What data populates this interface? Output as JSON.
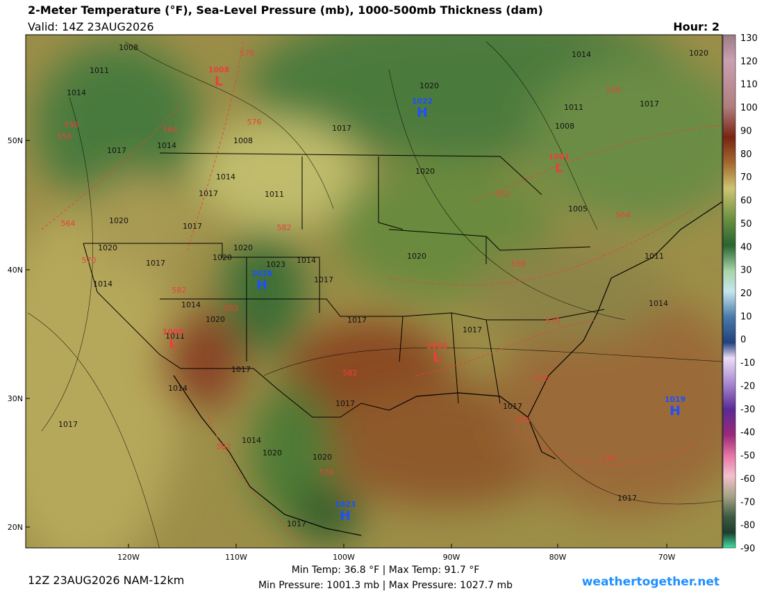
{
  "header": {
    "title": "2-Meter Temperature (°F), Sea-Level Pressure (mb), 1000-500mb Thickness (dam)",
    "valid": "Valid: 14Z 23AUG2026",
    "hour": "Hour: 2"
  },
  "colorbar": {
    "ticks": [
      "130",
      "120",
      "110",
      "100",
      "90",
      "80",
      "70",
      "60",
      "50",
      "40",
      "30",
      "20",
      "10",
      "0",
      "-10",
      "-20",
      "-30",
      "-40",
      "-50",
      "-60",
      "-70",
      "-80",
      "-90"
    ]
  },
  "lat_labels": [
    "50N",
    "40N",
    "30N",
    "20N"
  ],
  "lon_labels": [
    "120W",
    "110W",
    "100W",
    "90W",
    "80W",
    "70W"
  ],
  "isobar_labels": [
    "1008",
    "1011",
    "1014",
    "1017",
    "1014",
    "1008",
    "1017",
    "1020",
    "1014",
    "1020",
    "1011",
    "1008",
    "1017",
    "1014",
    "1017",
    "1011",
    "1020",
    "1005",
    "1020",
    "1017",
    "1020",
    "1020",
    "1020",
    "1017",
    "1023",
    "1014",
    "1017",
    "1020",
    "1011",
    "1014",
    "1014",
    "1020",
    "1017",
    "1017",
    "1014",
    "1011",
    "1017",
    "1014",
    "1017",
    "1017",
    "1017",
    "1014",
    "1020",
    "1020",
    "1017",
    "1017"
  ],
  "thickness_labels": [
    "576",
    "558",
    "558",
    "564",
    "576",
    "558",
    "582",
    "564",
    "570",
    "582",
    "582",
    "552",
    "564",
    "558",
    "570",
    "582",
    "576",
    "576",
    "576",
    "582",
    "576"
  ],
  "centers": [
    {
      "letter": "L",
      "value": "1008"
    },
    {
      "letter": "H",
      "value": "1022"
    },
    {
      "letter": "L",
      "value": "1001"
    },
    {
      "letter": "H",
      "value": "1028"
    },
    {
      "letter": "L",
      "value": "1009"
    },
    {
      "letter": "L",
      "value": "1015"
    },
    {
      "letter": "H",
      "value": "1019"
    },
    {
      "letter": "H",
      "value": "1023"
    }
  ],
  "footer": {
    "run": "12Z 23AUG2026 NAM-12km",
    "temps": "Min Temp:  36.8 °F | Max Temp:  91.7 °F",
    "pressures": "Min Pressure: 1001.3 mb | Max Pressure: 1027.7 mb",
    "site": "weathertogether.net"
  }
}
